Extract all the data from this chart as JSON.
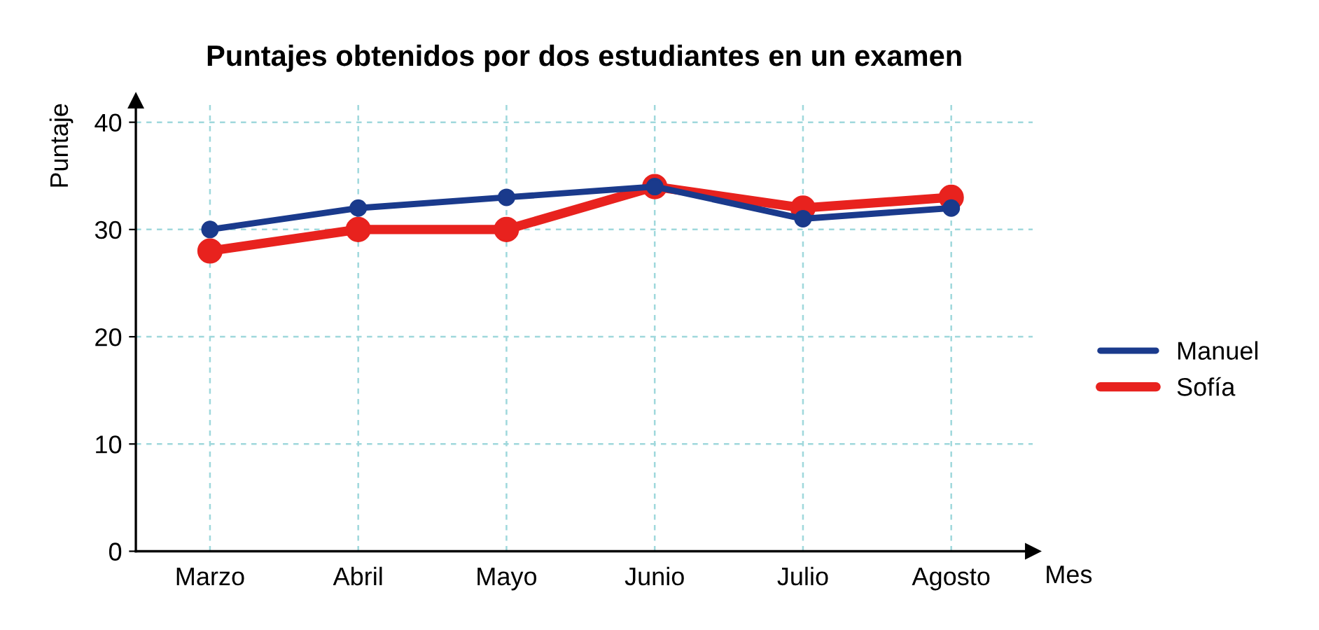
{
  "chart_data": {
    "type": "line",
    "title": "Puntajes obtenidos por dos estudiantes en un examen",
    "xlabel": "Mes",
    "ylabel": "Puntaje",
    "categories": [
      "Marzo",
      "Abril",
      "Mayo",
      "Junio",
      "Julio",
      "Agosto"
    ],
    "series": [
      {
        "name": "Manuel",
        "color": "#1a3a8c",
        "values": [
          30,
          32,
          33,
          34,
          31,
          32
        ]
      },
      {
        "name": "Sofía",
        "color": "#e8221e",
        "values": [
          28,
          30,
          30,
          34,
          32,
          33
        ]
      }
    ],
    "ylim": [
      0,
      42
    ],
    "yticks": [
      0,
      10,
      20,
      30,
      40
    ],
    "grid": true,
    "legend": "right",
    "marker": "circle",
    "line_style": "solid"
  }
}
